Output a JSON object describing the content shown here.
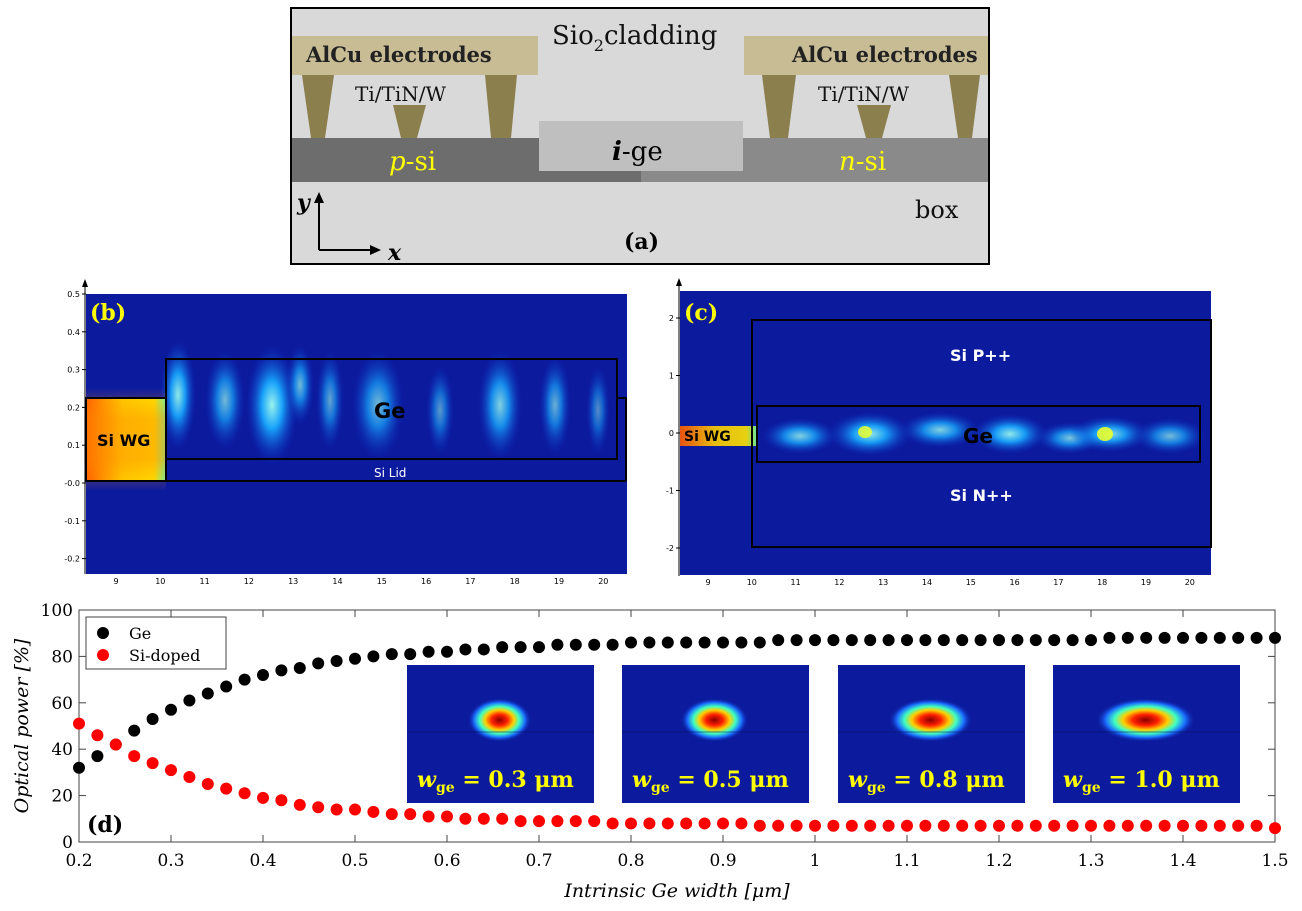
{
  "panel_a": {
    "label": "(a)",
    "cladding": "Sio",
    "cladding_sub": "2",
    "cladding_rest": "cladding",
    "electrode_left": "AlCu electrodes",
    "electrode_right": "AlCu electrodes",
    "via_left": "Ti/TiN/W",
    "via_right": "Ti/TiN/W",
    "p_region_italic": "p",
    "p_region_rest": "-si",
    "n_region_italic": "n",
    "n_region_rest": "-si",
    "ge_italic": "i",
    "ge_rest": "-ge",
    "box": "box",
    "axis_y": "y",
    "axis_x": "x",
    "colors": {
      "cladding": "#d9d9d9",
      "electrode": "#c8bc95",
      "via": "#8c7f4e",
      "p_si": "#6d6d6d",
      "n_si": "#8a8a8a",
      "ge": "#bfbfbf",
      "box": "#d9d9d9",
      "doping_text": "#ffff00"
    }
  },
  "panel_b": {
    "label": "(b)",
    "region_wg": "Si WG",
    "region_ge": "Ge",
    "region_lid": "Si Lid",
    "x_ticks": [
      "9",
      "10",
      "11",
      "12",
      "13",
      "14",
      "15",
      "16",
      "17",
      "18",
      "19",
      "20"
    ],
    "y_ticks": [
      "0.5",
      "0.4",
      "0.3",
      "0.2",
      "0.1",
      "-0.0",
      "-0.1",
      "-0.2"
    ]
  },
  "panel_c": {
    "label": "(c)",
    "region_wg": "Si WG",
    "region_ge": "Ge",
    "region_p": "Si P++",
    "region_n": "Si N++",
    "x_ticks": [
      "9",
      "10",
      "11",
      "12",
      "13",
      "14",
      "15",
      "16",
      "17",
      "18",
      "19",
      "20"
    ],
    "y_ticks": [
      "2",
      "1",
      "0",
      "-1",
      "-2"
    ]
  },
  "insets": [
    {
      "w": "ge",
      "value": "= 0.3 μm"
    },
    {
      "w": "ge",
      "value": "= 0.5 μm"
    },
    {
      "w": "ge",
      "value": "= 0.8 μm"
    },
    {
      "w": "ge",
      "value": "= 1.0 μm"
    }
  ],
  "panel_d_label": "(d)",
  "chart_data": {
    "type": "scatter",
    "xlabel": "Intrinsic Ge width [μm]",
    "ylabel": "Optical power [%]",
    "xlim": [
      0.2,
      1.5
    ],
    "ylim": [
      0,
      100
    ],
    "x_ticks": [
      "0.2",
      "0.3",
      "0.4",
      "0.5",
      "0.6",
      "0.7",
      "0.8",
      "0.9",
      "1",
      "1.1",
      "1.2",
      "1.3",
      "1.4",
      "1.5"
    ],
    "y_ticks": [
      "0",
      "20",
      "40",
      "60",
      "80",
      "100"
    ],
    "legend_position": "top-left",
    "grid": false,
    "x": [
      0.2,
      0.22,
      0.24,
      0.26,
      0.28,
      0.3,
      0.32,
      0.34,
      0.36,
      0.38,
      0.4,
      0.42,
      0.44,
      0.46,
      0.48,
      0.5,
      0.52,
      0.54,
      0.56,
      0.58,
      0.6,
      0.62,
      0.64,
      0.66,
      0.68,
      0.7,
      0.72,
      0.74,
      0.76,
      0.78,
      0.8,
      0.82,
      0.84,
      0.86,
      0.88,
      0.9,
      0.92,
      0.94,
      0.96,
      0.98,
      1.0,
      1.02,
      1.04,
      1.06,
      1.08,
      1.1,
      1.12,
      1.14,
      1.16,
      1.18,
      1.2,
      1.22,
      1.24,
      1.26,
      1.28,
      1.3,
      1.32,
      1.34,
      1.36,
      1.38,
      1.4,
      1.42,
      1.44,
      1.46,
      1.48,
      1.5
    ],
    "series": [
      {
        "name": "Ge",
        "color": "#000000",
        "values": [
          32,
          37,
          42,
          48,
          53,
          57,
          61,
          64,
          67,
          70,
          72,
          74,
          75,
          77,
          78,
          79,
          80,
          81,
          81,
          82,
          82,
          83,
          83,
          84,
          84,
          84,
          85,
          85,
          85,
          85,
          86,
          86,
          86,
          86,
          86,
          86,
          86,
          86,
          87,
          87,
          87,
          87,
          87,
          87,
          87,
          87,
          87,
          87,
          87,
          87,
          87,
          87,
          87,
          87,
          87,
          87,
          88,
          88,
          88,
          88,
          88,
          88,
          88,
          88,
          88,
          88
        ]
      },
      {
        "name": "Si-doped",
        "color": "#ff0000",
        "values": [
          51,
          46,
          42,
          37,
          34,
          31,
          28,
          25,
          23,
          21,
          19,
          18,
          16,
          15,
          14,
          14,
          13,
          12,
          12,
          11,
          11,
          10,
          10,
          10,
          9,
          9,
          9,
          9,
          9,
          8,
          8,
          8,
          8,
          8,
          8,
          8,
          8,
          7,
          7,
          7,
          7,
          7,
          7,
          7,
          7,
          7,
          7,
          7,
          7,
          7,
          7,
          7,
          7,
          7,
          7,
          7,
          7,
          7,
          7,
          7,
          7,
          7,
          7,
          7,
          7,
          6
        ]
      }
    ]
  }
}
